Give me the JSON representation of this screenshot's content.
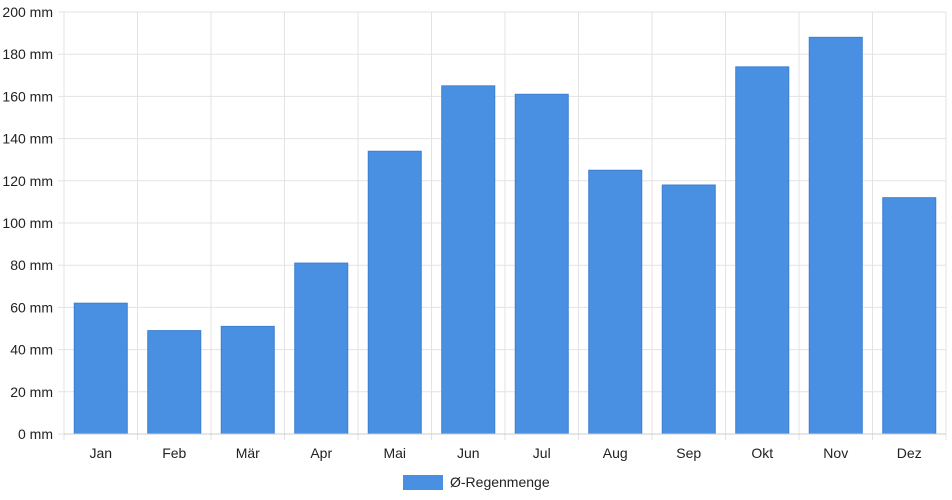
{
  "chart_data": {
    "type": "bar",
    "categories": [
      "Jan",
      "Feb",
      "Mär",
      "Apr",
      "Mai",
      "Jun",
      "Jul",
      "Aug",
      "Sep",
      "Okt",
      "Nov",
      "Dez"
    ],
    "series": [
      {
        "name": "Ø-Regenmenge",
        "color": "#4a90e2",
        "values": [
          62,
          49,
          51,
          81,
          134,
          165,
          161,
          125,
          118,
          174,
          188,
          112
        ]
      }
    ],
    "ylim": [
      0,
      200
    ],
    "yticks": [
      0,
      20,
      40,
      60,
      80,
      100,
      120,
      140,
      160,
      180,
      200
    ],
    "y_unit": "mm",
    "grid": true,
    "legend_position": "bottom-center"
  }
}
